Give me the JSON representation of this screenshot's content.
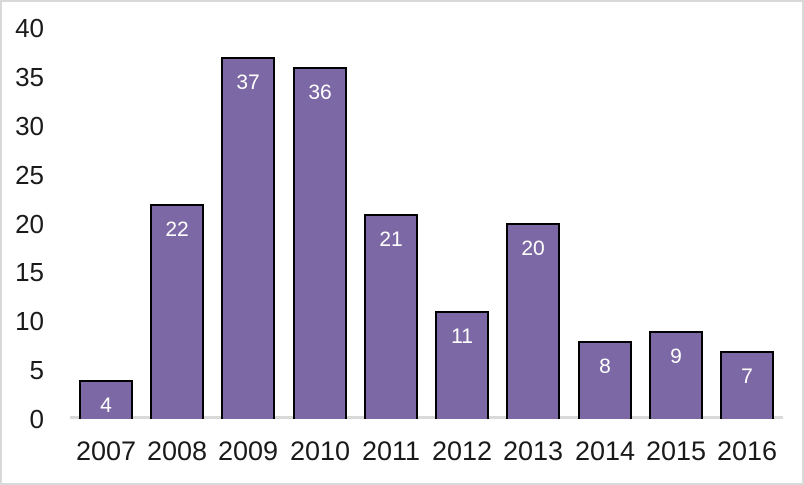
{
  "chart_data": {
    "type": "bar",
    "title": "",
    "xlabel": "",
    "ylabel": "",
    "categories": [
      "2007",
      "2008",
      "2009",
      "2010",
      "2011",
      "2012",
      "2013",
      "2014",
      "2015",
      "2016"
    ],
    "values": [
      4,
      22,
      37,
      36,
      21,
      11,
      20,
      8,
      9,
      7
    ],
    "data_labels": [
      "4",
      "22",
      "37",
      "36",
      "21",
      "11",
      "20",
      "8",
      "9",
      "7"
    ],
    "yticks": [
      0,
      5,
      10,
      15,
      20,
      25,
      30,
      35,
      40
    ],
    "ylim": [
      0,
      40
    ],
    "grid": false,
    "legend": false,
    "colors": {
      "bar_fill": "#7C68A5",
      "bar_border": "#000000",
      "axis_line": "#D9D9D9",
      "frame_border": "#D9D9D9",
      "tick_text": "#1a1a1a",
      "data_label_text": "#ffffff",
      "background": "#ffffff"
    }
  }
}
